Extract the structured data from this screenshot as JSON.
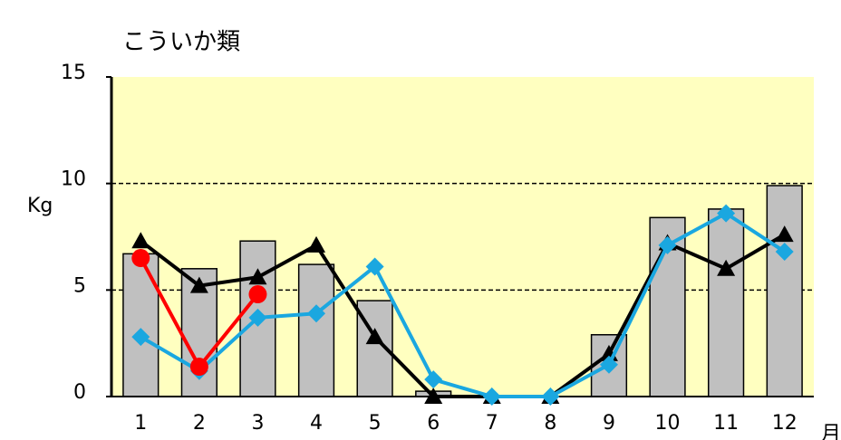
{
  "chart_data": {
    "type": "bar-line",
    "title": "こういか類",
    "y_label": "Kg",
    "x_label": "月",
    "categories": [
      "1",
      "2",
      "3",
      "4",
      "5",
      "6",
      "7",
      "8",
      "9",
      "10",
      "11",
      "12"
    ],
    "values": [
      6.7,
      6.0,
      7.3,
      6.2,
      4.5,
      0.25,
      0,
      0,
      2.9,
      8.4,
      8.8,
      9.9
    ],
    "color": "#c0c0c0",
    "series": [
      {
        "color": "#000000",
        "marker": "triangle",
        "values": [
          7.3,
          5.2,
          5.6,
          7.1,
          2.8,
          0,
          0,
          0,
          2.0,
          7.2,
          6.0,
          7.6
        ]
      },
      {
        "color": "#1aa7e0",
        "marker": "diamond",
        "values": [
          2.8,
          1.2,
          3.7,
          3.9,
          6.1,
          0.8,
          0,
          0,
          1.5,
          7.1,
          8.6,
          6.8
        ]
      },
      {
        "color": "#ff0000",
        "marker": "circle",
        "values": [
          6.5,
          1.4,
          4.8,
          null,
          null,
          null,
          null,
          null,
          null,
          null,
          null,
          null
        ]
      }
    ],
    "ylim": [
      0,
      15
    ],
    "yticks": [
      0,
      5,
      10,
      15
    ],
    "grid": true
  }
}
